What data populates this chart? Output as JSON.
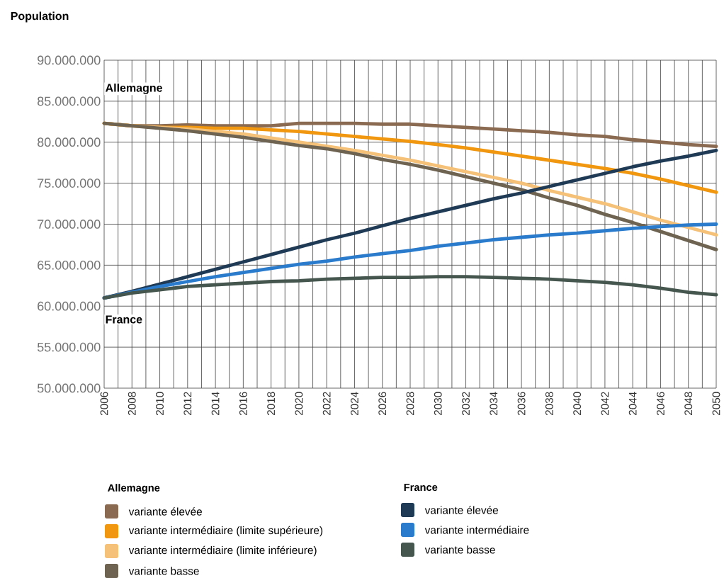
{
  "chart_data": {
    "type": "line",
    "ylabel": "Population",
    "annotations": [
      "Allemagne",
      "France",
      "Allemagne",
      "France"
    ],
    "x": [
      2006,
      2008,
      2010,
      2012,
      2014,
      2016,
      2018,
      2020,
      2022,
      2024,
      2026,
      2028,
      2030,
      2032,
      2034,
      2036,
      2038,
      2040,
      2042,
      2044,
      2046,
      2048,
      2050
    ],
    "series": [
      {
        "name": "variante élevée",
        "color": "#8a6a50",
        "values": [
          82300000,
          82000000,
          82000000,
          82100000,
          82000000,
          82000000,
          82000000,
          82300000,
          82300000,
          82300000,
          82200000,
          82200000,
          82000000,
          81800000,
          81600000,
          81400000,
          81200000,
          80900000,
          80700000,
          80300000,
          80000000,
          79700000,
          79500000
        ]
      },
      {
        "name": "variante intermédiaire (limite supérieure)",
        "color": "#f0960f",
        "values": [
          82300000,
          82000000,
          81800000,
          81800000,
          81700000,
          81700000,
          81500000,
          81300000,
          81000000,
          80700000,
          80400000,
          80100000,
          79700000,
          79300000,
          78800000,
          78300000,
          77800000,
          77300000,
          76800000,
          76200000,
          75500000,
          74700000,
          73900000
        ]
      },
      {
        "name": "variante intermédiaire (limite inférieure)",
        "color": "#f5c078",
        "values": [
          82300000,
          82000000,
          81800000,
          81600000,
          81300000,
          81000000,
          80500000,
          80000000,
          79500000,
          79000000,
          78400000,
          77800000,
          77100000,
          76400000,
          75700000,
          75000000,
          74100000,
          73300000,
          72500000,
          71500000,
          70500000,
          69600000,
          68700000
        ]
      },
      {
        "name": "variante basse",
        "color": "#6e6350",
        "values": [
          82300000,
          82000000,
          81700000,
          81400000,
          81000000,
          80600000,
          80100000,
          79600000,
          79200000,
          78600000,
          77900000,
          77300000,
          76600000,
          75800000,
          75000000,
          74200000,
          73200000,
          72300000,
          71200000,
          70200000,
          69100000,
          68000000,
          66900000
        ]
      },
      {
        "name": "variante élevée",
        "color": "#1f3a55",
        "values": [
          61000000,
          61800000,
          62700000,
          63600000,
          64500000,
          65400000,
          66300000,
          67200000,
          68100000,
          68900000,
          69800000,
          70700000,
          71500000,
          72300000,
          73100000,
          73800000,
          74600000,
          75400000,
          76200000,
          77000000,
          77700000,
          78300000,
          79000000
        ]
      },
      {
        "name": "variante intermédiaire",
        "color": "#2a7bcc",
        "values": [
          61000000,
          61700000,
          62400000,
          63000000,
          63600000,
          64100000,
          64600000,
          65100000,
          65500000,
          66000000,
          66400000,
          66800000,
          67300000,
          67700000,
          68100000,
          68400000,
          68700000,
          68900000,
          69200000,
          69500000,
          69700000,
          69900000,
          70000000
        ]
      },
      {
        "name": "variante basse",
        "color": "#45564f",
        "values": [
          61000000,
          61600000,
          62000000,
          62400000,
          62600000,
          62800000,
          63000000,
          63100000,
          63300000,
          63400000,
          63500000,
          63500000,
          63600000,
          63600000,
          63500000,
          63400000,
          63300000,
          63100000,
          62900000,
          62600000,
          62200000,
          61700000,
          61400000
        ]
      }
    ],
    "xlim": [
      2006,
      2050
    ],
    "xticks": [
      2006,
      {
        "value": 2007,
        "label": null
      },
      2008,
      {
        "value": 2009,
        "label": null
      },
      2010,
      {
        "value": 2011,
        "label": null
      },
      2012,
      {
        "value": 2013,
        "label": null
      },
      2014,
      {
        "value": 2015,
        "label": null
      },
      2016,
      {
        "value": 2017,
        "label": null
      },
      2018,
      {
        "value": 2019,
        "label": null
      },
      2020,
      {
        "value": 2021,
        "label": null
      },
      2022,
      {
        "value": 2023,
        "label": null
      },
      2024,
      {
        "value": 2025,
        "label": null
      },
      2026,
      {
        "value": 2027,
        "label": null
      },
      2028,
      {
        "value": 2029,
        "label": null
      },
      2030,
      {
        "value": 2031,
        "label": null
      },
      2032,
      {
        "value": 2033,
        "label": null
      },
      2034,
      {
        "value": 2035,
        "label": null
      },
      2036,
      {
        "value": 2037,
        "label": null
      },
      2038,
      {
        "value": 2039,
        "label": null
      },
      2040,
      {
        "value": 2041,
        "label": null
      },
      2042,
      {
        "value": 2043,
        "label": null
      },
      2044,
      {
        "value": 2045,
        "label": null
      },
      2046,
      {
        "value": 2047,
        "label": null
      },
      2048,
      {
        "value": 2049,
        "label": null
      },
      2050
    ],
    "ylim": [
      50000000,
      90000000
    ],
    "yticks": [
      {
        "value": 50000000,
        "label": "50.000.000"
      },
      {
        "value": 55000000,
        "label": "55.000.000"
      },
      {
        "value": 60000000,
        "label": "60.000.000"
      },
      {
        "value": 65000000,
        "label": "65.000.000"
      },
      {
        "value": 70000000,
        "label": "70.000.000"
      },
      {
        "value": 75000000,
        "label": "75.000.000"
      },
      {
        "value": 80000000,
        "label": "80.000.000"
      },
      {
        "value": 85000000,
        "label": "85.000.000"
      },
      {
        "value": 90000000,
        "label": "90.000.000"
      }
    ],
    "grid": true,
    "legend": "bottom",
    "marker": "none",
    "line_style": "solid"
  }
}
